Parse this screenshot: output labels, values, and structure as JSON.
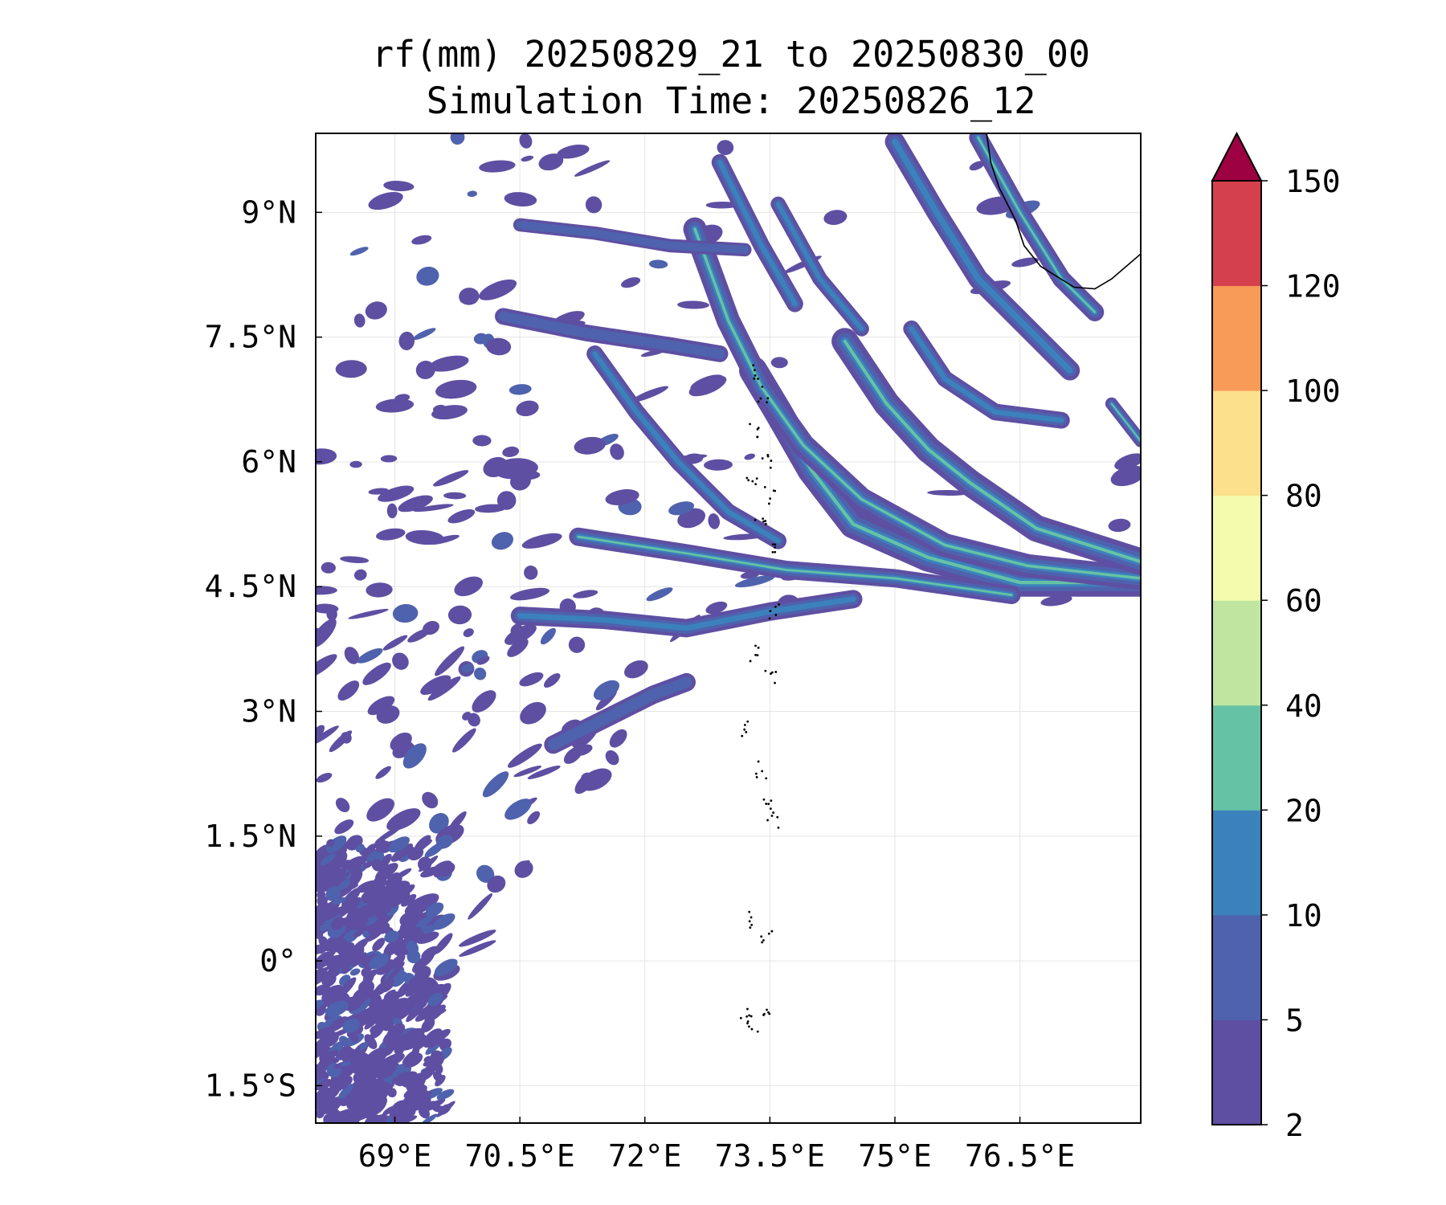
{
  "title": "rf(mm) 20250829_21 to 20250830_00",
  "subtitle": "Simulation Time: 20250826_12",
  "chart_data": {
    "type": "heatmap",
    "variable": "rf(mm)",
    "valid_period": "20250829_21 to 20250830_00",
    "simulation_time": "20250826_12",
    "xlim": [
      68.05,
      77.95
    ],
    "ylim": [
      -1.95,
      9.95
    ],
    "x_ticks": [
      69,
      70.5,
      72,
      73.5,
      75,
      76.5
    ],
    "x_tick_labels": [
      "69°E",
      "70.5°E",
      "72°E",
      "73.5°E",
      "75°E",
      "76.5°E"
    ],
    "y_ticks": [
      -1.5,
      0,
      1.5,
      3,
      4.5,
      6,
      7.5,
      9
    ],
    "y_tick_labels": [
      "1.5°S",
      "0°",
      "1.5°N",
      "3°N",
      "4.5°N",
      "6°N",
      "7.5°N",
      "9°N"
    ],
    "grid": true,
    "colorbar": {
      "levels": [
        2,
        5,
        10,
        20,
        40,
        60,
        80,
        100,
        120,
        150
      ],
      "level_labels": [
        "2",
        "5",
        "10",
        "20",
        "40",
        "60",
        "80",
        "100",
        "120",
        "150"
      ],
      "colors": [
        "#5e4fa2",
        "#4f62ad",
        "#3b82bd",
        "#66c2a5",
        "#bfe5a0",
        "#f4fbad",
        "#fde08b",
        "#f99b58",
        "#d5404f"
      ],
      "extend_max_color": "#9e0142",
      "extend": "max",
      "position": "right"
    },
    "coastline_color": "#000000",
    "precip_features": [
      {
        "name": "band-a",
        "path": [
          [
            73.3,
            7.1
          ],
          [
            73.6,
            6.6
          ],
          [
            74.0,
            5.9
          ],
          [
            74.5,
            5.25
          ],
          [
            75.4,
            4.85
          ],
          [
            76.5,
            4.55
          ],
          [
            77.95,
            4.55
          ]
        ],
        "width": 0.34,
        "peak": 20
      },
      {
        "name": "band-b",
        "path": [
          [
            72.6,
            8.8
          ],
          [
            73.0,
            7.7
          ],
          [
            73.4,
            6.9
          ],
          [
            73.9,
            6.2
          ],
          [
            74.6,
            5.55
          ],
          [
            75.6,
            5.0
          ],
          [
            76.6,
            4.75
          ],
          [
            77.95,
            4.6
          ]
        ],
        "width": 0.28,
        "peak": 20
      },
      {
        "name": "band-c",
        "path": [
          [
            74.4,
            7.45
          ],
          [
            74.9,
            6.7
          ],
          [
            75.4,
            6.15
          ],
          [
            75.9,
            5.75
          ],
          [
            76.7,
            5.2
          ],
          [
            77.95,
            4.8
          ]
        ],
        "width": 0.32,
        "peak": 40
      },
      {
        "name": "band-d",
        "path": [
          [
            73.6,
            9.1
          ],
          [
            74.1,
            8.2
          ],
          [
            74.6,
            7.6
          ]
        ],
        "width": 0.18,
        "peak": 10
      },
      {
        "name": "band-e",
        "path": [
          [
            72.9,
            9.6
          ],
          [
            73.4,
            8.6
          ],
          [
            73.8,
            7.9
          ]
        ],
        "width": 0.2,
        "peak": 10
      },
      {
        "name": "band-f",
        "path": [
          [
            75.0,
            9.85
          ],
          [
            75.5,
            9.0
          ],
          [
            76.0,
            8.2
          ],
          [
            76.6,
            7.6
          ],
          [
            77.1,
            7.1
          ]
        ],
        "width": 0.24,
        "peak": 10
      },
      {
        "name": "band-g",
        "path": [
          [
            76.0,
            9.9
          ],
          [
            76.5,
            9.0
          ],
          [
            77.0,
            8.2
          ],
          [
            77.4,
            7.8
          ]
        ],
        "width": 0.22,
        "peak": 20
      },
      {
        "name": "band-h",
        "path": [
          [
            75.2,
            7.6
          ],
          [
            75.6,
            7.0
          ],
          [
            76.2,
            6.6
          ],
          [
            77.0,
            6.5
          ]
        ],
        "width": 0.2,
        "peak": 10
      },
      {
        "name": "band-i",
        "path": [
          [
            71.2,
            5.1
          ],
          [
            72.5,
            4.9
          ],
          [
            73.7,
            4.7
          ],
          [
            75.0,
            4.6
          ],
          [
            76.4,
            4.4
          ]
        ],
        "width": 0.22,
        "peak": 40
      },
      {
        "name": "band-j",
        "path": [
          [
            70.5,
            4.15
          ],
          [
            71.5,
            4.1
          ],
          [
            72.5,
            4.0
          ],
          [
            73.5,
            4.2
          ],
          [
            74.5,
            4.35
          ]
        ],
        "width": 0.22,
        "peak": 10
      },
      {
        "name": "band-k",
        "path": [
          [
            71.4,
            7.3
          ],
          [
            71.9,
            6.6
          ],
          [
            72.4,
            6.0
          ],
          [
            73.0,
            5.4
          ],
          [
            73.6,
            5.05
          ]
        ],
        "width": 0.2,
        "peak": 10
      },
      {
        "name": "band-l",
        "path": [
          [
            70.9,
            2.6
          ],
          [
            71.5,
            2.9
          ],
          [
            72.1,
            3.2
          ],
          [
            72.5,
            3.35
          ]
        ],
        "width": 0.22,
        "peak": 5
      },
      {
        "name": "band-m",
        "path": [
          [
            70.3,
            7.75
          ],
          [
            71.3,
            7.55
          ],
          [
            72.3,
            7.4
          ],
          [
            72.9,
            7.3
          ]
        ],
        "width": 0.2,
        "peak": 5
      },
      {
        "name": "band-n",
        "path": [
          [
            70.5,
            8.85
          ],
          [
            71.4,
            8.75
          ],
          [
            72.3,
            8.6
          ],
          [
            73.2,
            8.55
          ]
        ],
        "width": 0.16,
        "peak": 5
      },
      {
        "name": "band-o",
        "path": [
          [
            77.6,
            6.7
          ],
          [
            77.95,
            6.25
          ]
        ],
        "width": 0.15,
        "peak": 20
      }
    ]
  }
}
